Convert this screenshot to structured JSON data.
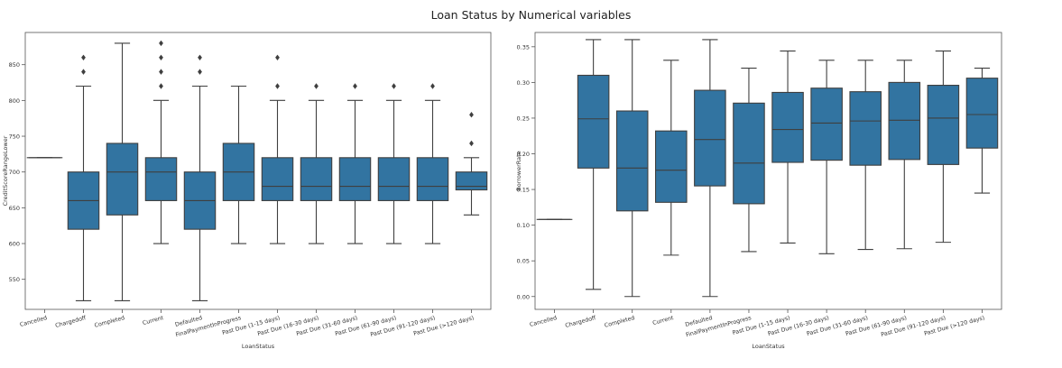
{
  "figure": {
    "title": "Loan Status by Numerical variables"
  },
  "colors": {
    "box_fill": "#3274A1",
    "line": "#3f3f3f",
    "frame": "#555555"
  },
  "chart_data": [
    {
      "type": "box",
      "title": "",
      "xlabel": "LoanStatus",
      "ylabel": "CreditScoreRangeLower",
      "ylim": [
        508,
        895
      ],
      "yticks": [
        550,
        600,
        650,
        700,
        750,
        800,
        850
      ],
      "categories": [
        "Cancelled",
        "Chargedoff",
        "Completed",
        "Current",
        "Defaulted",
        "FinalPaymentInProgress",
        "Past Due (1-15 days)",
        "Past Due (16-30 days)",
        "Past Due (31-60 days)",
        "Past Due (61-90 days)",
        "Past Due (91-120 days)",
        "Past Due (>120 days)"
      ],
      "boxes": [
        {
          "q1": 720,
          "median": 720,
          "q3": 720,
          "whislo": 720,
          "whishi": 720,
          "fliers": []
        },
        {
          "q1": 620,
          "median": 660,
          "q3": 700,
          "whislo": 520,
          "whishi": 820,
          "fliers": [
            840,
            860
          ]
        },
        {
          "q1": 640,
          "median": 700,
          "q3": 740,
          "whislo": 520,
          "whishi": 880,
          "fliers": []
        },
        {
          "q1": 660,
          "median": 700,
          "q3": 720,
          "whislo": 600,
          "whishi": 800,
          "fliers": [
            820,
            840,
            860,
            880
          ]
        },
        {
          "q1": 620,
          "median": 660,
          "q3": 700,
          "whislo": 520,
          "whishi": 820,
          "fliers": [
            840,
            860
          ]
        },
        {
          "q1": 660,
          "median": 700,
          "q3": 740,
          "whislo": 600,
          "whishi": 820,
          "fliers": []
        },
        {
          "q1": 660,
          "median": 680,
          "q3": 720,
          "whislo": 600,
          "whishi": 800,
          "fliers": [
            820,
            860
          ]
        },
        {
          "q1": 660,
          "median": 680,
          "q3": 720,
          "whislo": 600,
          "whishi": 800,
          "fliers": [
            820
          ]
        },
        {
          "q1": 660,
          "median": 680,
          "q3": 720,
          "whislo": 600,
          "whishi": 800,
          "fliers": [
            820
          ]
        },
        {
          "q1": 660,
          "median": 680,
          "q3": 720,
          "whislo": 600,
          "whishi": 800,
          "fliers": [
            820
          ]
        },
        {
          "q1": 660,
          "median": 680,
          "q3": 720,
          "whislo": 600,
          "whishi": 800,
          "fliers": [
            820
          ]
        },
        {
          "q1": 675,
          "median": 680,
          "q3": 700,
          "whislo": 640,
          "whishi": 720,
          "fliers": [
            740,
            780
          ]
        }
      ]
    },
    {
      "type": "box",
      "title": "",
      "xlabel": "LoanStatus",
      "ylabel": "BorrowerRate",
      "ylim": [
        -0.018,
        0.37
      ],
      "yticks": [
        0.0,
        0.05,
        0.1,
        0.15,
        0.2,
        0.25,
        0.3,
        0.35
      ],
      "ytick_labels": [
        "0.00",
        "0.05",
        "0.10",
        "0.15",
        "0.20",
        "0.25",
        "0.30",
        "0.35"
      ],
      "categories": [
        "Cancelled",
        "Chargedoff",
        "Completed",
        "Current",
        "Defaulted",
        "FinalPaymentInProgress",
        "Past Due (1-15 days)",
        "Past Due (16-30 days)",
        "Past Due (31-60 days)",
        "Past Due (61-90 days)",
        "Past Due (91-120 days)",
        "Past Due (>120 days)"
      ],
      "boxes": [
        {
          "q1": 0.108,
          "median": 0.108,
          "q3": 0.108,
          "whislo": 0.108,
          "whishi": 0.108,
          "fliers": []
        },
        {
          "q1": 0.18,
          "median": 0.249,
          "q3": 0.31,
          "whislo": 0.01,
          "whishi": 0.36,
          "fliers": []
        },
        {
          "q1": 0.12,
          "median": 0.18,
          "q3": 0.26,
          "whislo": 0.0,
          "whishi": 0.36,
          "fliers": []
        },
        {
          "q1": 0.132,
          "median": 0.177,
          "q3": 0.232,
          "whislo": 0.058,
          "whishi": 0.331,
          "fliers": []
        },
        {
          "q1": 0.155,
          "median": 0.22,
          "q3": 0.289,
          "whislo": 0.0,
          "whishi": 0.36,
          "fliers": []
        },
        {
          "q1": 0.13,
          "median": 0.187,
          "q3": 0.271,
          "whislo": 0.063,
          "whishi": 0.32,
          "fliers": []
        },
        {
          "q1": 0.188,
          "median": 0.234,
          "q3": 0.286,
          "whislo": 0.075,
          "whishi": 0.344,
          "fliers": []
        },
        {
          "q1": 0.191,
          "median": 0.243,
          "q3": 0.292,
          "whislo": 0.06,
          "whishi": 0.331,
          "fliers": []
        },
        {
          "q1": 0.184,
          "median": 0.246,
          "q3": 0.287,
          "whislo": 0.066,
          "whishi": 0.331,
          "fliers": []
        },
        {
          "q1": 0.192,
          "median": 0.247,
          "q3": 0.3,
          "whislo": 0.067,
          "whishi": 0.331,
          "fliers": []
        },
        {
          "q1": 0.185,
          "median": 0.25,
          "q3": 0.296,
          "whislo": 0.076,
          "whishi": 0.344,
          "fliers": []
        },
        {
          "q1": 0.208,
          "median": 0.255,
          "q3": 0.306,
          "whislo": 0.145,
          "whishi": 0.32,
          "fliers": []
        }
      ]
    }
  ]
}
